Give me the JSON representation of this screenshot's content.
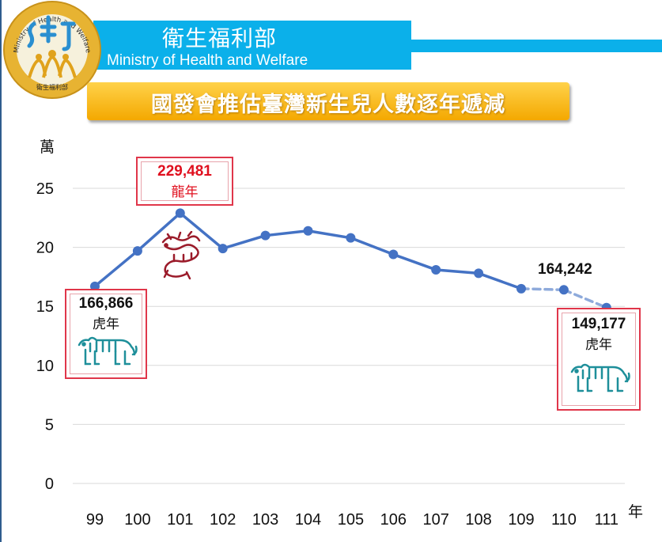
{
  "header": {
    "title_cn": "衛生福利部",
    "title_en": "Ministry of Health and Welfare",
    "logo_ring_text": "Ministry of Health and Welfare",
    "logo_bottom_text": "衛生福利部"
  },
  "banner": {
    "text": "國發會推估臺灣新生兒人數逐年遞減"
  },
  "colors": {
    "line": "#4472c4",
    "header": "#0bb0ea",
    "banner": "#f4a800",
    "callout_border": "#e0364a",
    "tiger": "#1e8f9a",
    "dragon": "#9b1b2a"
  },
  "chart_data": {
    "type": "line",
    "ylabel": "萬",
    "xlabel": "年",
    "ylim": [
      0,
      25
    ],
    "yticks": [
      "0",
      "5",
      "10",
      "15",
      "20",
      "25"
    ],
    "categories": [
      "99",
      "100",
      "101",
      "102",
      "103",
      "104",
      "105",
      "106",
      "107",
      "108",
      "109",
      "110",
      "111"
    ],
    "values": [
      16.7,
      19.7,
      22.9,
      19.9,
      21.0,
      21.4,
      20.8,
      19.4,
      18.1,
      17.8,
      16.5,
      16.4,
      14.9
    ],
    "grid": true,
    "dashed_from_index": 10,
    "annotations": [
      {
        "value": "166,866",
        "note": "虎年",
        "icon": "tiger-icon"
      },
      {
        "value": "229,481",
        "note": "龍年",
        "icon": "dragon-icon"
      },
      {
        "value": "164,242",
        "note": ""
      },
      {
        "value": "149,177",
        "note": "虎年",
        "icon": "tiger-icon"
      }
    ]
  }
}
